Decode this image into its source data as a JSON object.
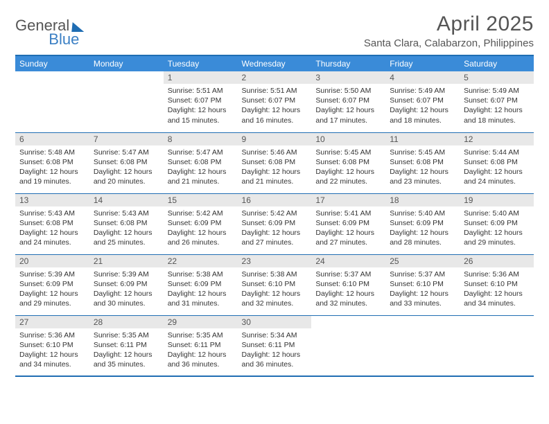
{
  "brand": {
    "part1": "General",
    "part2": "Blue"
  },
  "title": "April 2025",
  "location": "Santa Clara, Calabarzon, Philippines",
  "colors": {
    "header_bg": "#3a8bd8",
    "header_text": "#ffffff",
    "rule": "#1f6db3",
    "daynum_bg": "#e8e8e8",
    "body_text": "#333333",
    "brand_blue": "#3a7fc4"
  },
  "dayNames": [
    "Sunday",
    "Monday",
    "Tuesday",
    "Wednesday",
    "Thursday",
    "Friday",
    "Saturday"
  ],
  "labels": {
    "sunrise": "Sunrise:",
    "sunset": "Sunset:",
    "daylight": "Daylight:"
  },
  "weeks": [
    [
      null,
      null,
      {
        "n": 1,
        "sr": "5:51 AM",
        "ss": "6:07 PM",
        "dl": "12 hours and 15 minutes."
      },
      {
        "n": 2,
        "sr": "5:51 AM",
        "ss": "6:07 PM",
        "dl": "12 hours and 16 minutes."
      },
      {
        "n": 3,
        "sr": "5:50 AM",
        "ss": "6:07 PM",
        "dl": "12 hours and 17 minutes."
      },
      {
        "n": 4,
        "sr": "5:49 AM",
        "ss": "6:07 PM",
        "dl": "12 hours and 18 minutes."
      },
      {
        "n": 5,
        "sr": "5:49 AM",
        "ss": "6:07 PM",
        "dl": "12 hours and 18 minutes."
      }
    ],
    [
      {
        "n": 6,
        "sr": "5:48 AM",
        "ss": "6:08 PM",
        "dl": "12 hours and 19 minutes."
      },
      {
        "n": 7,
        "sr": "5:47 AM",
        "ss": "6:08 PM",
        "dl": "12 hours and 20 minutes."
      },
      {
        "n": 8,
        "sr": "5:47 AM",
        "ss": "6:08 PM",
        "dl": "12 hours and 21 minutes."
      },
      {
        "n": 9,
        "sr": "5:46 AM",
        "ss": "6:08 PM",
        "dl": "12 hours and 21 minutes."
      },
      {
        "n": 10,
        "sr": "5:45 AM",
        "ss": "6:08 PM",
        "dl": "12 hours and 22 minutes."
      },
      {
        "n": 11,
        "sr": "5:45 AM",
        "ss": "6:08 PM",
        "dl": "12 hours and 23 minutes."
      },
      {
        "n": 12,
        "sr": "5:44 AM",
        "ss": "6:08 PM",
        "dl": "12 hours and 24 minutes."
      }
    ],
    [
      {
        "n": 13,
        "sr": "5:43 AM",
        "ss": "6:08 PM",
        "dl": "12 hours and 24 minutes."
      },
      {
        "n": 14,
        "sr": "5:43 AM",
        "ss": "6:08 PM",
        "dl": "12 hours and 25 minutes."
      },
      {
        "n": 15,
        "sr": "5:42 AM",
        "ss": "6:09 PM",
        "dl": "12 hours and 26 minutes."
      },
      {
        "n": 16,
        "sr": "5:42 AM",
        "ss": "6:09 PM",
        "dl": "12 hours and 27 minutes."
      },
      {
        "n": 17,
        "sr": "5:41 AM",
        "ss": "6:09 PM",
        "dl": "12 hours and 27 minutes."
      },
      {
        "n": 18,
        "sr": "5:40 AM",
        "ss": "6:09 PM",
        "dl": "12 hours and 28 minutes."
      },
      {
        "n": 19,
        "sr": "5:40 AM",
        "ss": "6:09 PM",
        "dl": "12 hours and 29 minutes."
      }
    ],
    [
      {
        "n": 20,
        "sr": "5:39 AM",
        "ss": "6:09 PM",
        "dl": "12 hours and 29 minutes."
      },
      {
        "n": 21,
        "sr": "5:39 AM",
        "ss": "6:09 PM",
        "dl": "12 hours and 30 minutes."
      },
      {
        "n": 22,
        "sr": "5:38 AM",
        "ss": "6:09 PM",
        "dl": "12 hours and 31 minutes."
      },
      {
        "n": 23,
        "sr": "5:38 AM",
        "ss": "6:10 PM",
        "dl": "12 hours and 32 minutes."
      },
      {
        "n": 24,
        "sr": "5:37 AM",
        "ss": "6:10 PM",
        "dl": "12 hours and 32 minutes."
      },
      {
        "n": 25,
        "sr": "5:37 AM",
        "ss": "6:10 PM",
        "dl": "12 hours and 33 minutes."
      },
      {
        "n": 26,
        "sr": "5:36 AM",
        "ss": "6:10 PM",
        "dl": "12 hours and 34 minutes."
      }
    ],
    [
      {
        "n": 27,
        "sr": "5:36 AM",
        "ss": "6:10 PM",
        "dl": "12 hours and 34 minutes."
      },
      {
        "n": 28,
        "sr": "5:35 AM",
        "ss": "6:11 PM",
        "dl": "12 hours and 35 minutes."
      },
      {
        "n": 29,
        "sr": "5:35 AM",
        "ss": "6:11 PM",
        "dl": "12 hours and 36 minutes."
      },
      {
        "n": 30,
        "sr": "5:34 AM",
        "ss": "6:11 PM",
        "dl": "12 hours and 36 minutes."
      },
      null,
      null,
      null
    ]
  ]
}
